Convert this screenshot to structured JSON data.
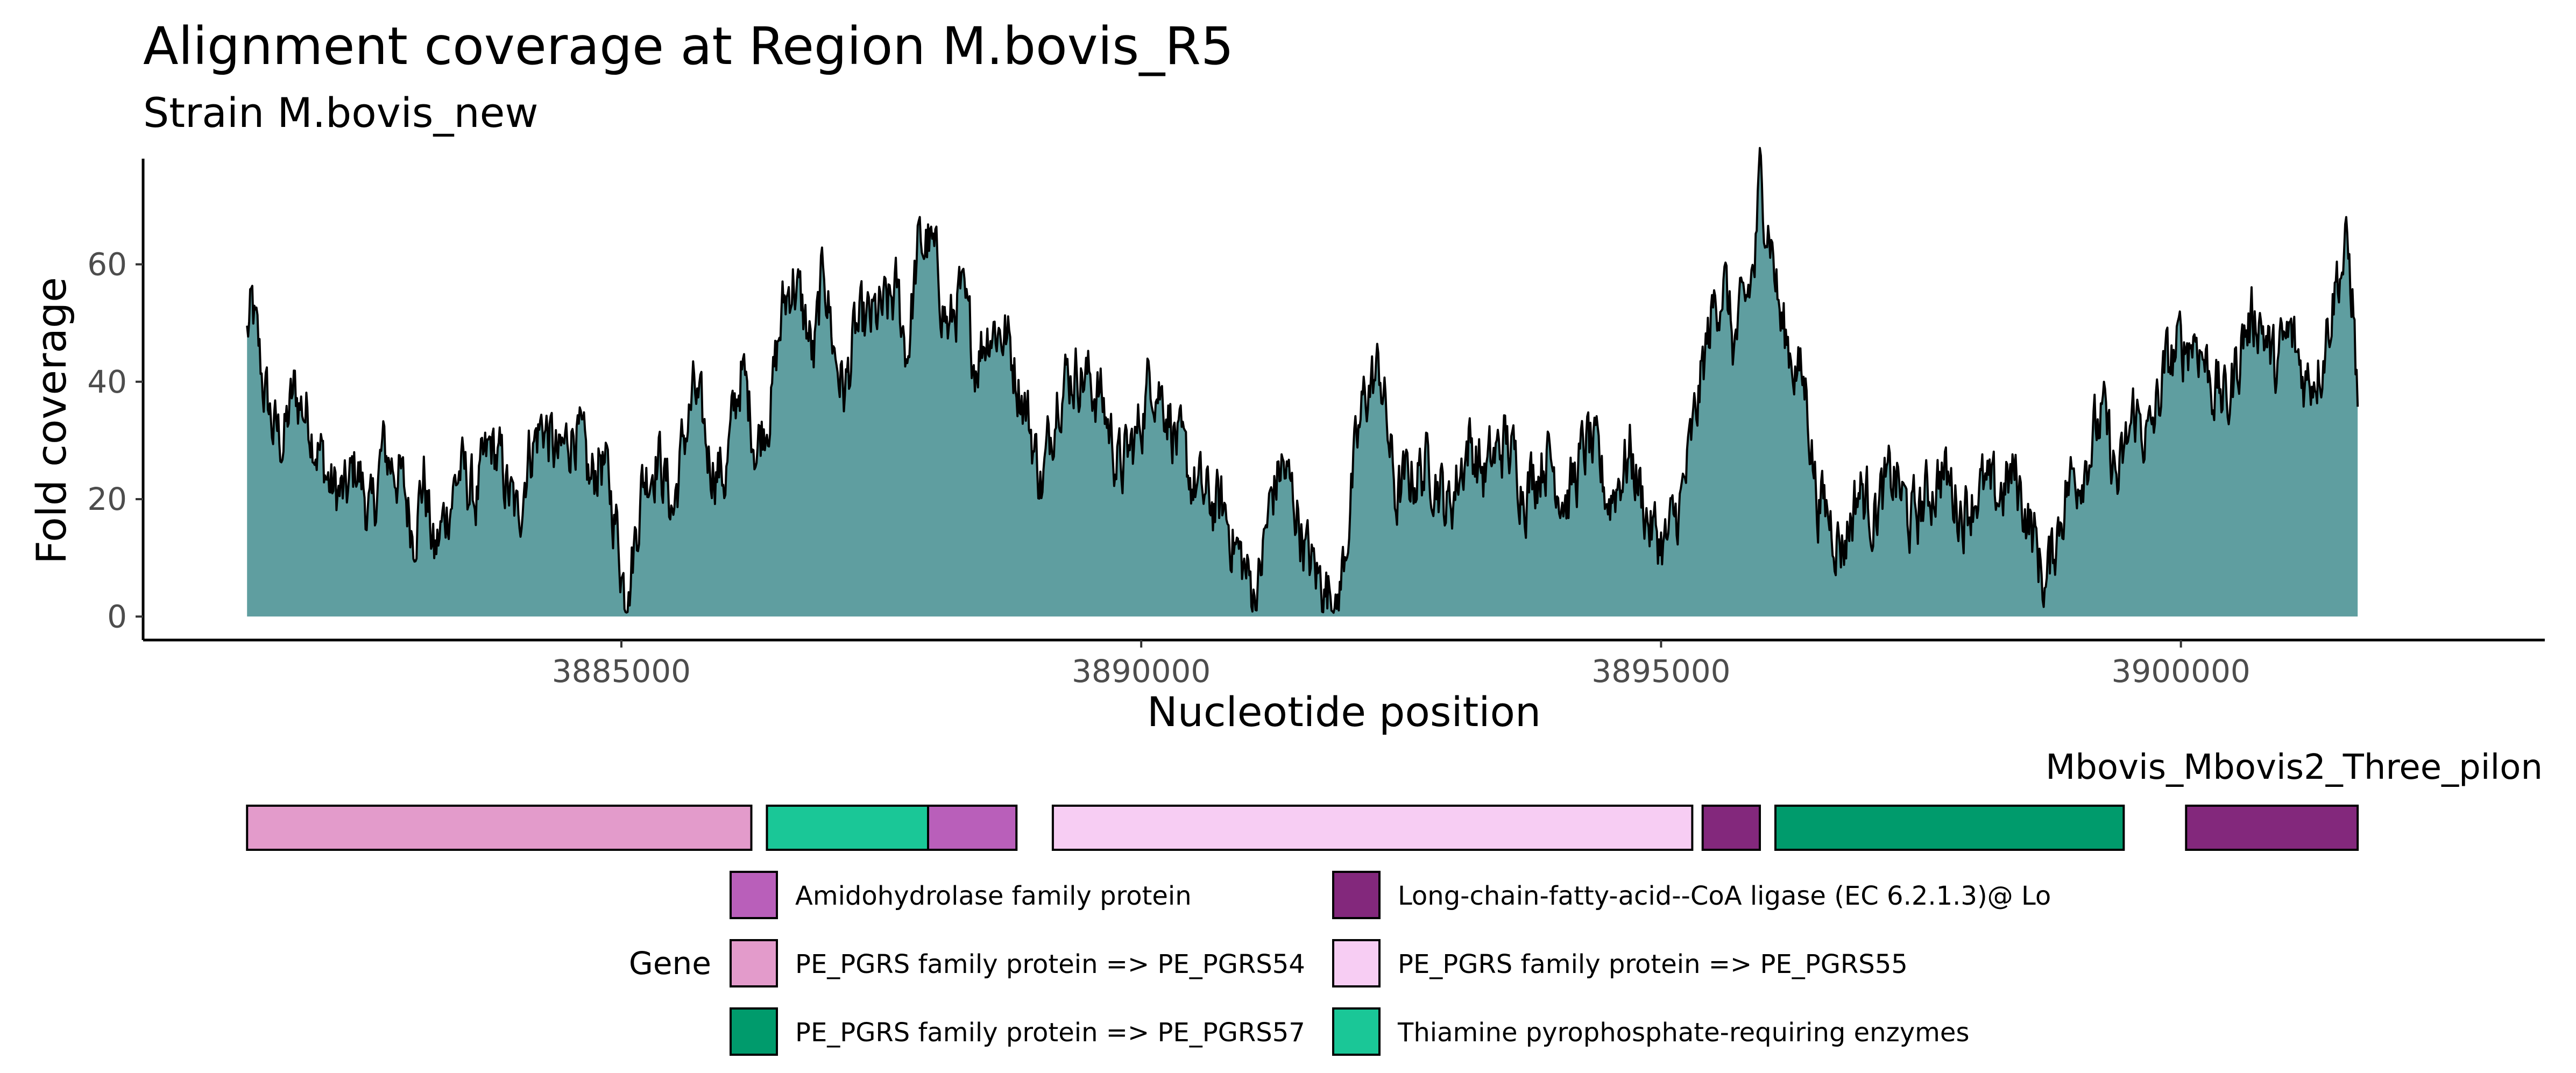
{
  "chart_data": {
    "type": "area",
    "title": "Alignment coverage at Region M.bovis_R5",
    "subtitle": "Strain M.bovis_new",
    "xlabel": "Nucleotide position",
    "ylabel": "Fold coverage",
    "xlim": [
      3880400,
      3903500
    ],
    "ylim": [
      -4,
      78
    ],
    "x_ticks": [
      3885000,
      3890000,
      3895000,
      3900000
    ],
    "y_ticks": [
      0,
      20,
      40,
      60
    ],
    "grid": false,
    "fill_color": "#5f9ea0",
    "line_color": "#000000",
    "x_start": 3881400,
    "x_end": 3901700,
    "coverage_profile": [
      [
        3881400,
        48
      ],
      [
        3881450,
        52
      ],
      [
        3881550,
        40
      ],
      [
        3881650,
        32
      ],
      [
        3881750,
        30
      ],
      [
        3881850,
        38
      ],
      [
        3882000,
        34
      ],
      [
        3882100,
        28
      ],
      [
        3882200,
        22
      ],
      [
        3882350,
        20
      ],
      [
        3882450,
        26
      ],
      [
        3882600,
        16
      ],
      [
        3882700,
        28
      ],
      [
        3882850,
        25
      ],
      [
        3883000,
        15
      ],
      [
        3883100,
        24
      ],
      [
        3883200,
        10
      ],
      [
        3883350,
        20
      ],
      [
        3883450,
        25
      ],
      [
        3883600,
        20
      ],
      [
        3883750,
        29
      ],
      [
        3883850,
        25
      ],
      [
        3884000,
        16
      ],
      [
        3884100,
        28
      ],
      [
        3884250,
        33
      ],
      [
        3884400,
        26
      ],
      [
        3884550,
        33
      ],
      [
        3884700,
        22
      ],
      [
        3884800,
        28
      ],
      [
        3884950,
        16
      ],
      [
        3885050,
        2
      ],
      [
        3885200,
        23
      ],
      [
        3885350,
        28
      ],
      [
        3885500,
        18
      ],
      [
        3885600,
        30
      ],
      [
        3885700,
        38
      ],
      [
        3885850,
        27
      ],
      [
        3886000,
        24
      ],
      [
        3886150,
        42
      ],
      [
        3886250,
        34
      ],
      [
        3886300,
        29
      ],
      [
        3886450,
        38
      ],
      [
        3886550,
        52
      ],
      [
        3886650,
        58
      ],
      [
        3886800,
        48
      ],
      [
        3886850,
        43
      ],
      [
        3886950,
        60
      ],
      [
        3887050,
        45
      ],
      [
        3887150,
        38
      ],
      [
        3887250,
        48
      ],
      [
        3887400,
        50
      ],
      [
        3887550,
        52
      ],
      [
        3887650,
        55
      ],
      [
        3887750,
        45
      ],
      [
        3887850,
        62
      ],
      [
        3887950,
        64
      ],
      [
        3888050,
        58
      ],
      [
        3888150,
        48
      ],
      [
        3888250,
        55
      ],
      [
        3888400,
        44
      ],
      [
        3888550,
        50
      ],
      [
        3888700,
        48
      ],
      [
        3888900,
        35
      ],
      [
        3889050,
        22
      ],
      [
        3889200,
        40
      ],
      [
        3889400,
        42
      ],
      [
        3889600,
        38
      ],
      [
        3889800,
        25
      ],
      [
        3889950,
        30
      ],
      [
        3890100,
        42
      ],
      [
        3890250,
        36
      ],
      [
        3890400,
        26
      ],
      [
        3890600,
        20
      ],
      [
        3890800,
        18
      ],
      [
        3890950,
        10
      ],
      [
        3891100,
        3
      ],
      [
        3891250,
        20
      ],
      [
        3891350,
        26
      ],
      [
        3891500,
        18
      ],
      [
        3891600,
        10
      ],
      [
        3891750,
        5
      ],
      [
        3891900,
        3
      ],
      [
        3892050,
        25
      ],
      [
        3892150,
        38
      ],
      [
        3892300,
        42
      ],
      [
        3892450,
        20
      ],
      [
        3892600,
        24
      ],
      [
        3892800,
        26
      ],
      [
        3892950,
        18
      ],
      [
        3893150,
        30
      ],
      [
        3893300,
        24
      ],
      [
        3893500,
        30
      ],
      [
        3893700,
        22
      ],
      [
        3893900,
        28
      ],
      [
        3894100,
        20
      ],
      [
        3894300,
        30
      ],
      [
        3894500,
        20
      ],
      [
        3894700,
        28
      ],
      [
        3894900,
        15
      ],
      [
        3895050,
        12
      ],
      [
        3895200,
        20
      ],
      [
        3895300,
        30
      ],
      [
        3895400,
        42
      ],
      [
        3895500,
        52
      ],
      [
        3895600,
        58
      ],
      [
        3895700,
        46
      ],
      [
        3895800,
        52
      ],
      [
        3895900,
        60
      ],
      [
        3895950,
        74
      ],
      [
        3896050,
        66
      ],
      [
        3896150,
        50
      ],
      [
        3896250,
        45
      ],
      [
        3896400,
        38
      ],
      [
        3896500,
        20
      ],
      [
        3896600,
        18
      ],
      [
        3896750,
        12
      ],
      [
        3896900,
        22
      ],
      [
        3897050,
        18
      ],
      [
        3897250,
        24
      ],
      [
        3897400,
        16
      ],
      [
        3897550,
        20
      ],
      [
        3897700,
        25
      ],
      [
        3897900,
        18
      ],
      [
        3898050,
        22
      ],
      [
        3898200,
        20
      ],
      [
        3898400,
        24
      ],
      [
        3898550,
        16
      ],
      [
        3898700,
        5
      ],
      [
        3898800,
        14
      ],
      [
        3898900,
        22
      ],
      [
        3899050,
        26
      ],
      [
        3899250,
        34
      ],
      [
        3899400,
        22
      ],
      [
        3899550,
        35
      ],
      [
        3899700,
        30
      ],
      [
        3899850,
        42
      ],
      [
        3900000,
        46
      ],
      [
        3900150,
        48
      ],
      [
        3900300,
        40
      ],
      [
        3900450,
        36
      ],
      [
        3900600,
        48
      ],
      [
        3900750,
        52
      ],
      [
        3900900,
        42
      ],
      [
        3901050,
        48
      ],
      [
        3901200,
        40
      ],
      [
        3901350,
        44
      ],
      [
        3901500,
        58
      ],
      [
        3901600,
        62
      ],
      [
        3901650,
        55
      ],
      [
        3901700,
        36
      ]
    ],
    "gene_track": {
      "label": "Mbovis_Mbovis2_Three_pilon",
      "features": [
        {
          "start": 3881400,
          "end": 3886250,
          "gene": "PE_PGRS family protein => PE_PGRS54",
          "color": "#e39bcb"
        },
        {
          "start": 3886400,
          "end": 3887950,
          "gene": "Thiamine pyrophosphate-requiring enzymes",
          "color": "#1ac797"
        },
        {
          "start": 3887950,
          "end": 3888800,
          "gene": "Amidohydrolase family protein",
          "color": "#b95fba"
        },
        {
          "start": 3889150,
          "end": 3895300,
          "gene": "PE_PGRS family protein => PE_PGRS55",
          "color": "#f7cdf3"
        },
        {
          "start": 3895400,
          "end": 3895950,
          "gene": "Long-chain-fatty-acid--CoA ligase (EC 6.2.1.3)@ Lo",
          "color": "#83287c"
        },
        {
          "start": 3896100,
          "end": 3899450,
          "gene": "PE_PGRS family protein => PE_PGRS57",
          "color": "#009b6c"
        },
        {
          "start": 3900050,
          "end": 3901700,
          "gene": "Long-chain-fatty-acid--CoA ligase (EC 6.2.1.3)@ Lo",
          "color": "#83287c"
        }
      ]
    },
    "legend": {
      "title": "Gene",
      "placement": "bottom",
      "entries": [
        {
          "label": "Amidohydrolase family protein",
          "color": "#b95fba"
        },
        {
          "label": "PE_PGRS family protein => PE_PGRS54",
          "color": "#e39bcb"
        },
        {
          "label": "PE_PGRS family protein => PE_PGRS57",
          "color": "#009b6c"
        },
        {
          "label": "Long-chain-fatty-acid--CoA ligase (EC 6.2.1.3)@ Lo",
          "color": "#83287c"
        },
        {
          "label": "PE_PGRS family protein => PE_PGRS55",
          "color": "#f7cdf3"
        },
        {
          "label": "Thiamine pyrophosphate-requiring enzymes",
          "color": "#1ac797"
        }
      ]
    }
  }
}
